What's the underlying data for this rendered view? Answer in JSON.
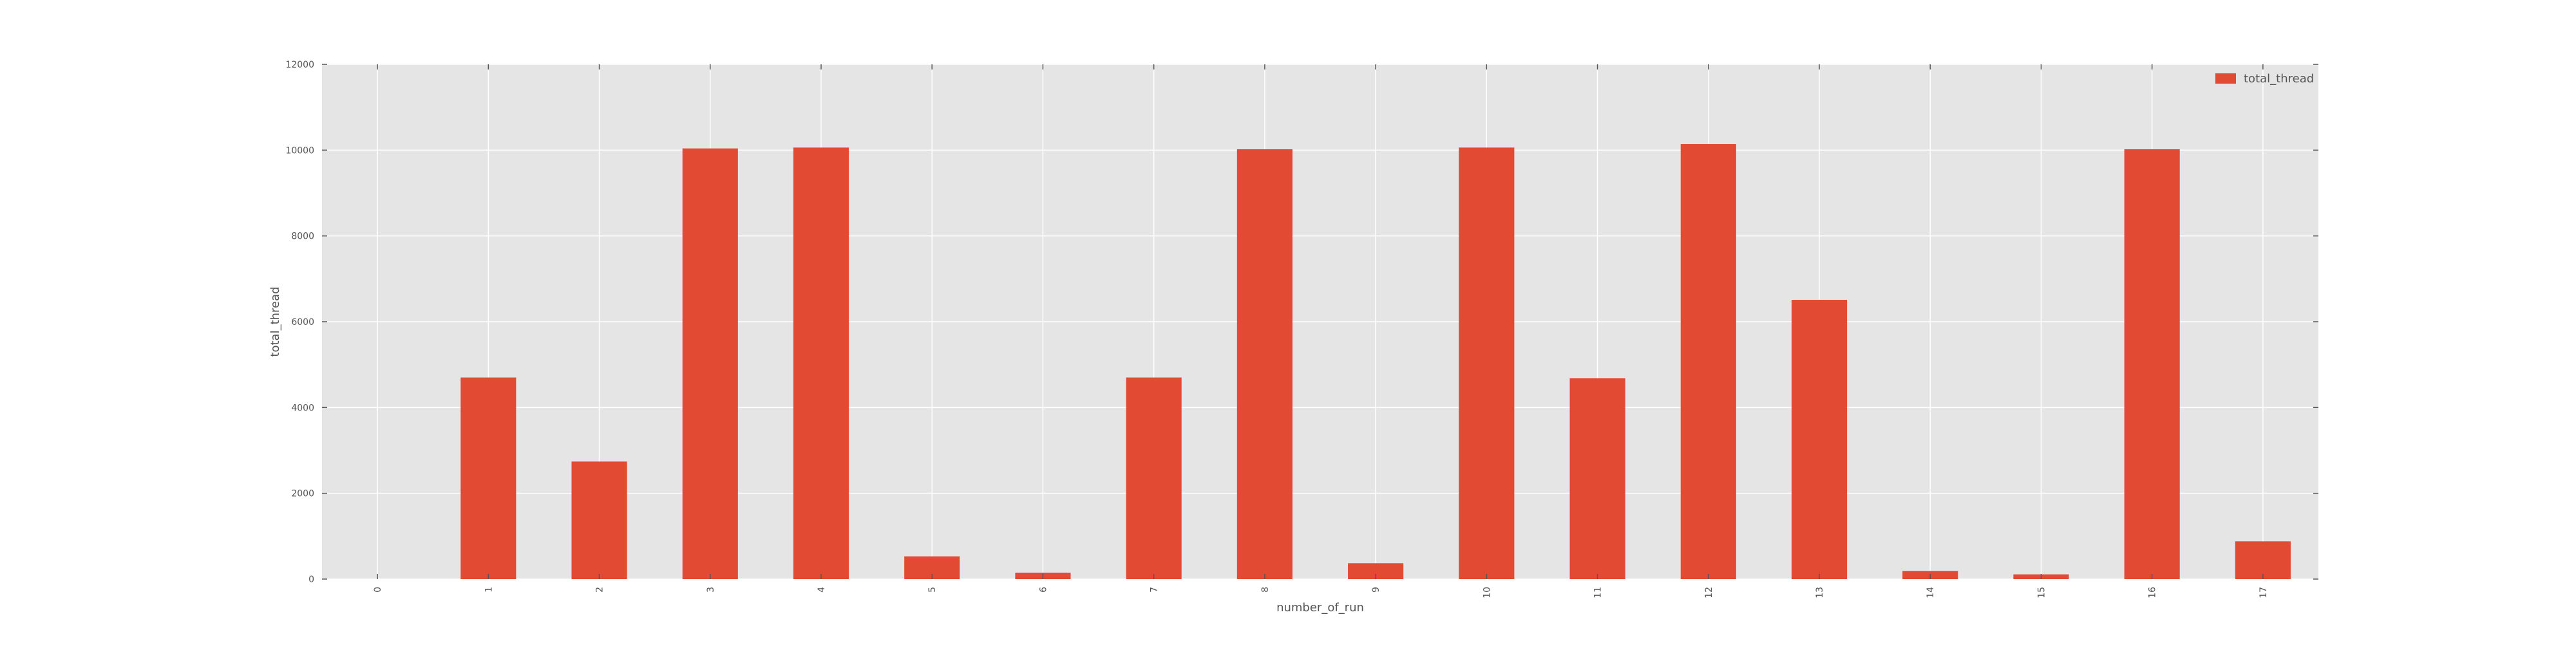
{
  "chart_data": {
    "type": "bar",
    "xlabel": "number_of_run",
    "ylabel": "total_thread",
    "categories": [
      "0",
      "1",
      "2",
      "3",
      "4",
      "5",
      "6",
      "7",
      "8",
      "9",
      "10",
      "11",
      "12",
      "13",
      "14",
      "15",
      "16",
      "17"
    ],
    "series": [
      {
        "name": "total_thread",
        "values": [
          0,
          4700,
          2740,
          10040,
          10060,
          530,
          150,
          4700,
          10020,
          370,
          10060,
          4680,
          10140,
          6510,
          190,
          110,
          10020,
          880
        ]
      }
    ],
    "ylim": [
      0,
      12000
    ],
    "yticks": [
      0,
      2000,
      4000,
      6000,
      8000,
      10000,
      12000
    ],
    "grid": true,
    "legend_position": "top-right",
    "colors": {
      "bar": "#e24a33",
      "plot_background": "#e5e5e5",
      "grid": "#ffffff",
      "text": "#555555"
    }
  }
}
